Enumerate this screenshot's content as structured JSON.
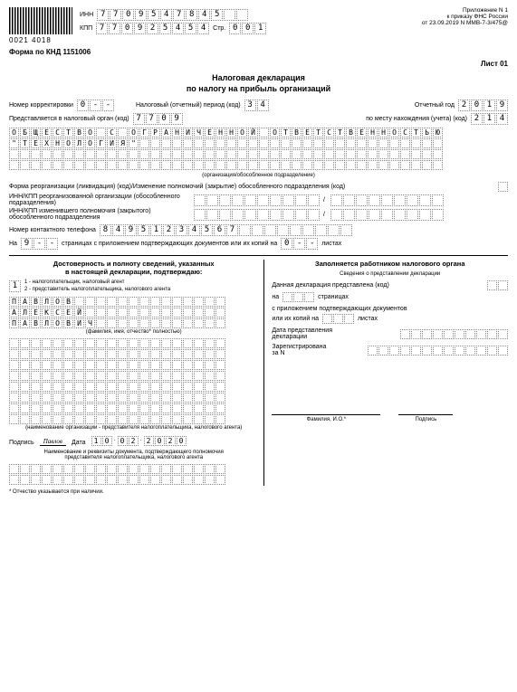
{
  "header": {
    "barcode": "0021 4018",
    "inn_label": "ИНН",
    "inn": [
      "7",
      "7",
      "0",
      "9",
      "5",
      "4",
      "7",
      "8",
      "4",
      "5",
      "",
      ""
    ],
    "kpp_label": "КПП",
    "kpp": [
      "7",
      "7",
      "0",
      "9",
      "2",
      "5",
      "4",
      "5",
      "4"
    ],
    "page_label": "Стр.",
    "page": [
      "0",
      "0",
      "1"
    ],
    "appendix": "Приложение N 1\nк приказу ФНС России\nот 23.09.2019 N ММВ-7-3/475@",
    "form_code": "Форма по КНД 1151006",
    "sheet": "Лист 01"
  },
  "title1": "Налоговая декларация",
  "title2": "по налогу на прибыль организаций",
  "correction_label": "Номер корректировки",
  "correction": [
    "0",
    "-",
    "-"
  ],
  "period_label": "Налоговый (отчетный) период (код)",
  "period": [
    "3",
    "4"
  ],
  "year_label": "Отчетный год",
  "year": [
    "2",
    "0",
    "1",
    "9"
  ],
  "authority_label": "Представляется в налоговый орган (код)",
  "authority": [
    "7",
    "7",
    "0",
    "9"
  ],
  "location_label": "по месту нахождения (учета) (код)",
  "location": [
    "2",
    "1",
    "4"
  ],
  "org_name_rows": [
    [
      "О",
      "Б",
      "Щ",
      "Е",
      "С",
      "Т",
      "В",
      "О",
      "",
      "С",
      "",
      "О",
      "Г",
      "Р",
      "А",
      "Н",
      "И",
      "Ч",
      "Е",
      "Н",
      "Н",
      "О",
      "Й",
      "",
      "О",
      "Т",
      "В",
      "Е",
      "Т",
      "С",
      "Т",
      "В",
      "Е",
      "Н",
      "Н",
      "О",
      "С",
      "Т",
      "Ь",
      "Ю"
    ],
    [
      "\"",
      "Т",
      "Е",
      "Х",
      "Н",
      "О",
      "Л",
      "О",
      "Г",
      "И",
      "Я",
      "\"",
      "",
      "",
      "",
      "",
      "",
      "",
      "",
      "",
      "",
      "",
      "",
      "",
      "",
      "",
      "",
      "",
      "",
      "",
      "",
      "",
      "",
      "",
      "",
      "",
      "",
      "",
      "",
      ""
    ],
    [
      "",
      "",
      "",
      "",
      "",
      "",
      "",
      "",
      "",
      "",
      "",
      "",
      "",
      "",
      "",
      "",
      "",
      "",
      "",
      "",
      "",
      "",
      "",
      "",
      "",
      "",
      "",
      "",
      "",
      "",
      "",
      "",
      "",
      "",
      "",
      "",
      "",
      "",
      "",
      ""
    ],
    [
      "",
      "",
      "",
      "",
      "",
      "",
      "",
      "",
      "",
      "",
      "",
      "",
      "",
      "",
      "",
      "",
      "",
      "",
      "",
      "",
      "",
      "",
      "",
      "",
      "",
      "",
      "",
      "",
      "",
      "",
      "",
      "",
      "",
      "",
      "",
      "",
      "",
      "",
      "",
      ""
    ]
  ],
  "org_sub": "(организация/обособленное подразделение)",
  "reorg_label": "Форма реорганизации (ликвидация) (код)/Изменение полномочий (закрытие) обособленного подразделения (код)",
  "reorg_inn_label": "ИНН/КПП реорганизованной организации (обособленного подразделения)",
  "reorg_inn2_label": "ИНН/КПП изменившего полномочия (закрытого) обособленного подразделения",
  "phone_label": "Номер контактного телефона",
  "phone": [
    "8",
    "4",
    "9",
    "5",
    "1",
    "2",
    "3",
    "4",
    "5",
    "6",
    "7",
    "",
    "",
    "",
    "",
    "",
    "",
    "",
    "",
    ""
  ],
  "pages_on": "На",
  "pages": [
    "9",
    "-",
    "-"
  ],
  "pages_text": "страницах с приложением подтверждающих документов или их копий на",
  "attach": [
    "0",
    "-",
    "-"
  ],
  "attach_text": "листах",
  "left": {
    "title": "Достоверность и полноту сведений, указанных\nв настоящей декларации, подтверждаю:",
    "role": [
      "1"
    ],
    "role_desc": "1 - налогоплательщик, налоговый агент\n2 - представитель налогоплательщика, налогового агента",
    "name_rows": [
      [
        "П",
        "А",
        "В",
        "Л",
        "О",
        "В",
        "",
        "",
        "",
        "",
        "",
        "",
        "",
        "",
        "",
        "",
        "",
        "",
        "",
        ""
      ],
      [
        "А",
        "Л",
        "Е",
        "К",
        "С",
        "Е",
        "Й",
        "",
        "",
        "",
        "",
        "",
        "",
        "",
        "",
        "",
        "",
        "",
        "",
        ""
      ],
      [
        "П",
        "А",
        "В",
        "Л",
        "О",
        "В",
        "И",
        "Ч",
        "",
        "",
        "",
        "",
        "",
        "",
        "",
        "",
        "",
        "",
        "",
        ""
      ]
    ],
    "name_sub": "(фамилия, имя, отчество* полностью)",
    "rep_rows_count": 8,
    "rep_sub": "(наименование организации - представителя налогоплательщика, налогового агента)",
    "sig_label": "Подпись",
    "sig_val": "Павлов",
    "date_label": "Дата",
    "date": [
      "1",
      "0",
      ".",
      "0",
      "2",
      ".",
      "2",
      "0",
      "2",
      "0"
    ],
    "doc_label": "Наименование и реквизиты документа, подтверждающего полномочия\nпредставителя налогоплательщика, налогового агента"
  },
  "right": {
    "title": "Заполняется работником налогового органа",
    "sub": "Сведения о представлении декларации",
    "submitted_label": "Данная декларация представлена (код)",
    "on_label": "на",
    "pages_label": "страницах",
    "attach_label": "с приложением подтверждающих документов",
    "attach2": "или их копий на",
    "attach2_label": "листах",
    "date_label": "Дата представления\nдекларации",
    "reg_label": "Зарегистрирована\nза N"
  },
  "footer": {
    "fio": "Фамилия, И.О.*",
    "sig": "Подпись",
    "note": "* Отчество указывается при наличии."
  }
}
